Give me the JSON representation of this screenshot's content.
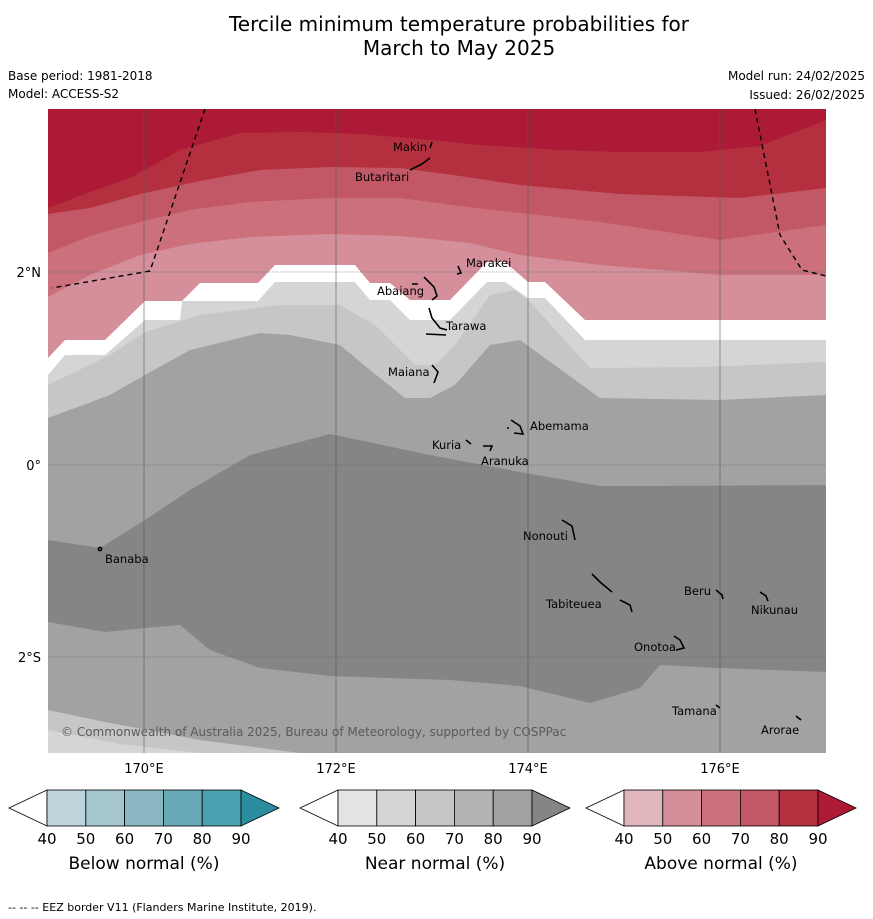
{
  "title_line1": "Tercile minimum temperature probabilities for",
  "title_line2": "March to May 2025",
  "base_period": "Base period: 1981-2018",
  "model": "Model: ACCESS-S2",
  "model_run": "Model run: 24/02/2025",
  "issued": "Issued: 26/02/2025",
  "copyright": "© Commonwealth of Australia 2025, Bureau of Meteorology, supported by COSPPac",
  "lat_labels": [
    "2°N",
    "0°",
    "2°S"
  ],
  "lon_labels": [
    "170°E",
    "172°E",
    "174°E",
    "176°E"
  ],
  "places": [
    "Makin",
    "Butaritari",
    "Marakei",
    "Abaiang",
    "Tarawa",
    "Maiana",
    "Abemama",
    "Kuria",
    "Aranuka",
    "Nonouti",
    "Banaba",
    "Beru",
    "Tabiteuea",
    "Nikunau",
    "Onotoa",
    "Tamana",
    "Arorae"
  ],
  "colorbars": [
    {
      "label": "Below normal (%)",
      "ticks": [
        "40",
        "50",
        "60",
        "70",
        "80",
        "90"
      ],
      "colors": [
        "#bdd4db",
        "#a5c6cd",
        "#8ab7c2",
        "#6aa9b6",
        "#4aa2b0",
        "#2b8da0"
      ]
    },
    {
      "label": "Near normal (%)",
      "ticks": [
        "40",
        "50",
        "60",
        "70",
        "80",
        "90"
      ],
      "colors": [
        "#e3e3e3",
        "#d5d5d5",
        "#c6c6c6",
        "#b4b4b4",
        "#a2a2a2",
        "#858585"
      ]
    },
    {
      "label": "Above normal (%)",
      "ticks": [
        "40",
        "50",
        "60",
        "70",
        "80",
        "90"
      ],
      "colors": [
        "#e2b6bd",
        "#d58f9a",
        "#cc717c",
        "#c25866",
        "#b5303f",
        "#ad1a36"
      ]
    }
  ],
  "footer": "--  --  -- EEZ border V11 (Flanders Marine Institute, 2019)."
}
